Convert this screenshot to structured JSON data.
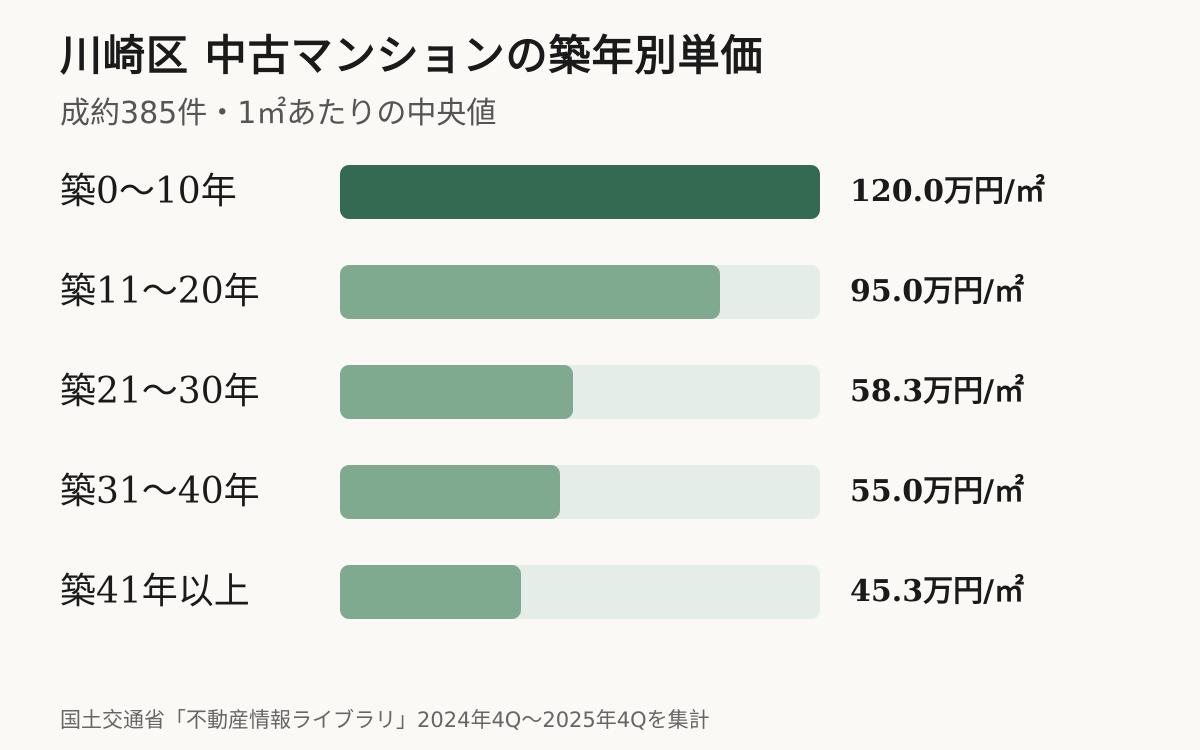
{
  "title": "川崎区  中古マンションの築年別単価",
  "subtitle": "成約385件・1㎡あたりの中央値",
  "source": "国土交通省「不動産情報ライブラリ」2024年4Q～2025年4Qを集計",
  "colors": {
    "background": "#faf9f6",
    "highlight_bar": "#346a51",
    "bar": "#7faa8f",
    "track": "#e5ede9"
  },
  "chart_data": {
    "type": "bar",
    "orientation": "horizontal",
    "categories": [
      "築0～10年",
      "築11～20年",
      "築21～30年",
      "築31～40年",
      "築41年以上"
    ],
    "values": [
      120.0,
      95.0,
      58.3,
      55.0,
      45.3
    ],
    "value_labels": [
      "120.0万円/㎡",
      "95.0万円/㎡",
      "58.3万円/㎡",
      "55.0万円/㎡",
      "45.3万円/㎡"
    ],
    "unit": "万円/㎡",
    "xlim": [
      0,
      120
    ],
    "highlight_index": 0,
    "grid": false,
    "legend": "none"
  }
}
